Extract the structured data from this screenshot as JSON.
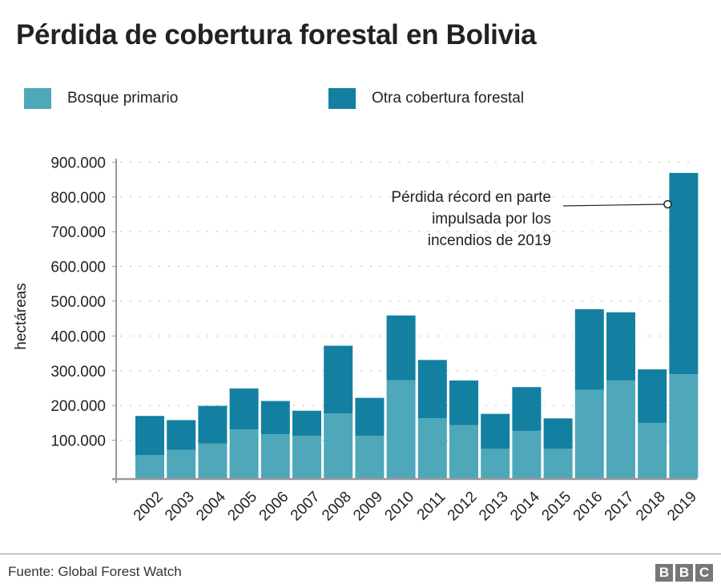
{
  "chart_data": {
    "type": "bar",
    "stacked": true,
    "title": "Pérdida de cobertura forestal en Bolivia",
    "ylabel": "hectáreas",
    "xlabel": "",
    "ylim": [
      0,
      900000
    ],
    "yticks": [
      "100.000",
      "200.000",
      "300.000",
      "400.000",
      "500.000",
      "600.000",
      "700.000",
      "800.000",
      "900.000"
    ],
    "grid": true,
    "legend_position": "top",
    "categories": [
      "2002",
      "2003",
      "2004",
      "2005",
      "2006",
      "2007",
      "2008",
      "2009",
      "2010",
      "2011",
      "2012",
      "2013",
      "2014",
      "2015",
      "2016",
      "2017",
      "2018",
      "2019"
    ],
    "series": [
      {
        "name": "Bosque primario",
        "color": "#4ea8ba",
        "values": [
          57000,
          72000,
          91000,
          131000,
          117000,
          113000,
          177000,
          113000,
          273000,
          163000,
          144000,
          76000,
          127000,
          76000,
          245000,
          272000,
          150000,
          290000
        ]
      },
      {
        "name": "Otra cobertura forestal",
        "color": "#1380a1",
        "values": [
          113000,
          86000,
          108000,
          118000,
          96000,
          72000,
          195000,
          109000,
          186000,
          168000,
          128000,
          100000,
          126000,
          87000,
          232000,
          196000,
          154000,
          579000
        ]
      }
    ],
    "annotation": {
      "text": [
        "Pérdida récord en parte",
        "impulsada por los",
        "incendios de 2019"
      ],
      "category": "2019"
    }
  },
  "footer": {
    "source": "Fuente: Global Forest Watch",
    "logo": "BBC"
  }
}
